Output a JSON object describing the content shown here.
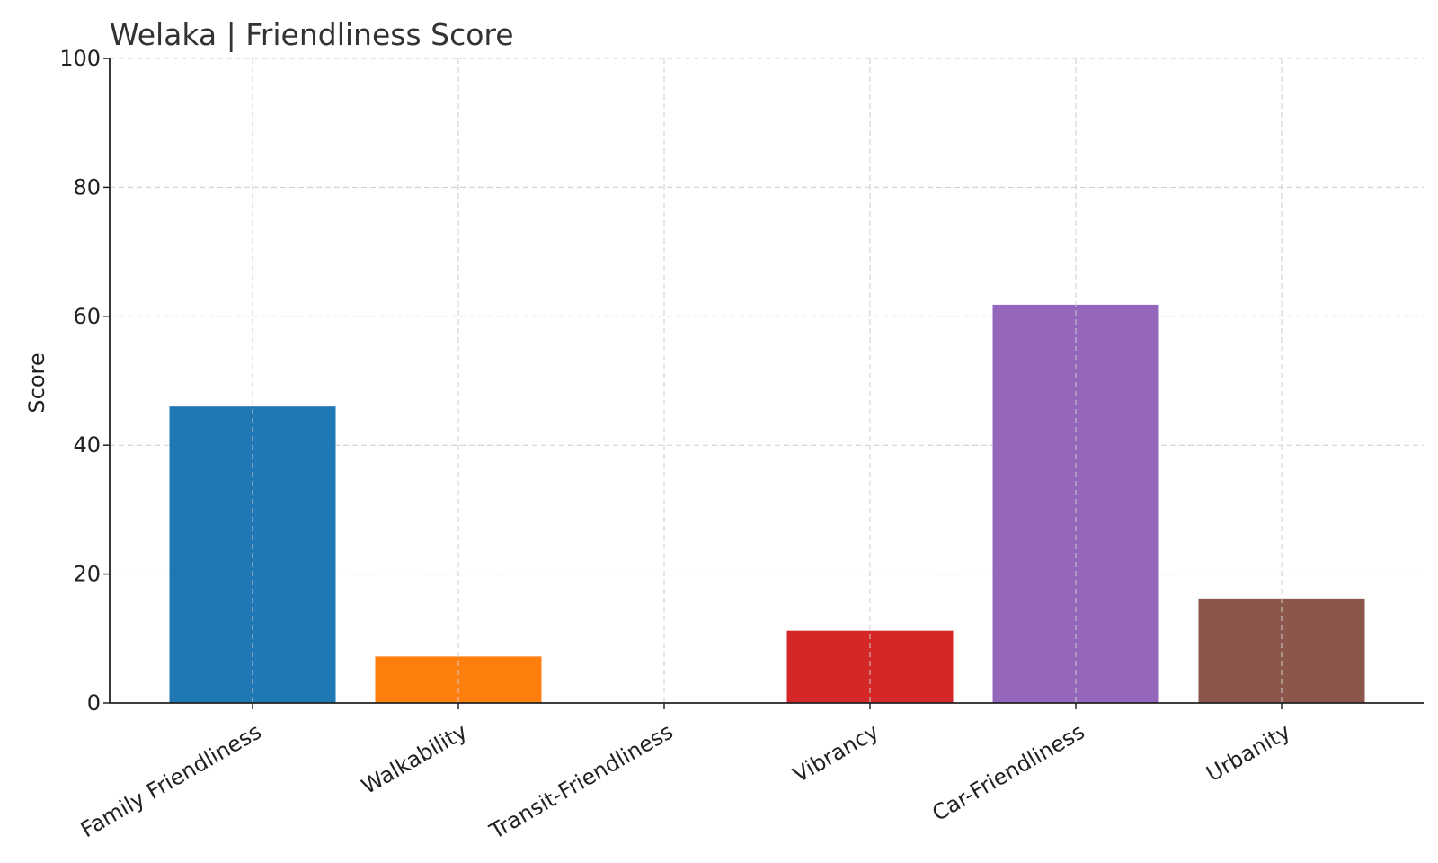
{
  "chart_data": {
    "type": "bar",
    "title": "Welaka |  Friendliness Score",
    "xlabel": "",
    "ylabel": "Score",
    "categories": [
      "Family Friendliness",
      "Walkability",
      "Transit-Friendliness",
      "Vibrancy",
      "Car-Friendliness",
      "Urbanity"
    ],
    "values": [
      46,
      7.2,
      0,
      11.2,
      61.8,
      16.2
    ],
    "colors": [
      "#1f77b4",
      "#ff7f0e",
      "#2ca02c",
      "#d62728",
      "#9467bd",
      "#8c564b"
    ],
    "ylim": [
      0,
      100
    ],
    "yticks": [
      0,
      20,
      40,
      60,
      80,
      100
    ],
    "grid": true,
    "legend": "none"
  }
}
